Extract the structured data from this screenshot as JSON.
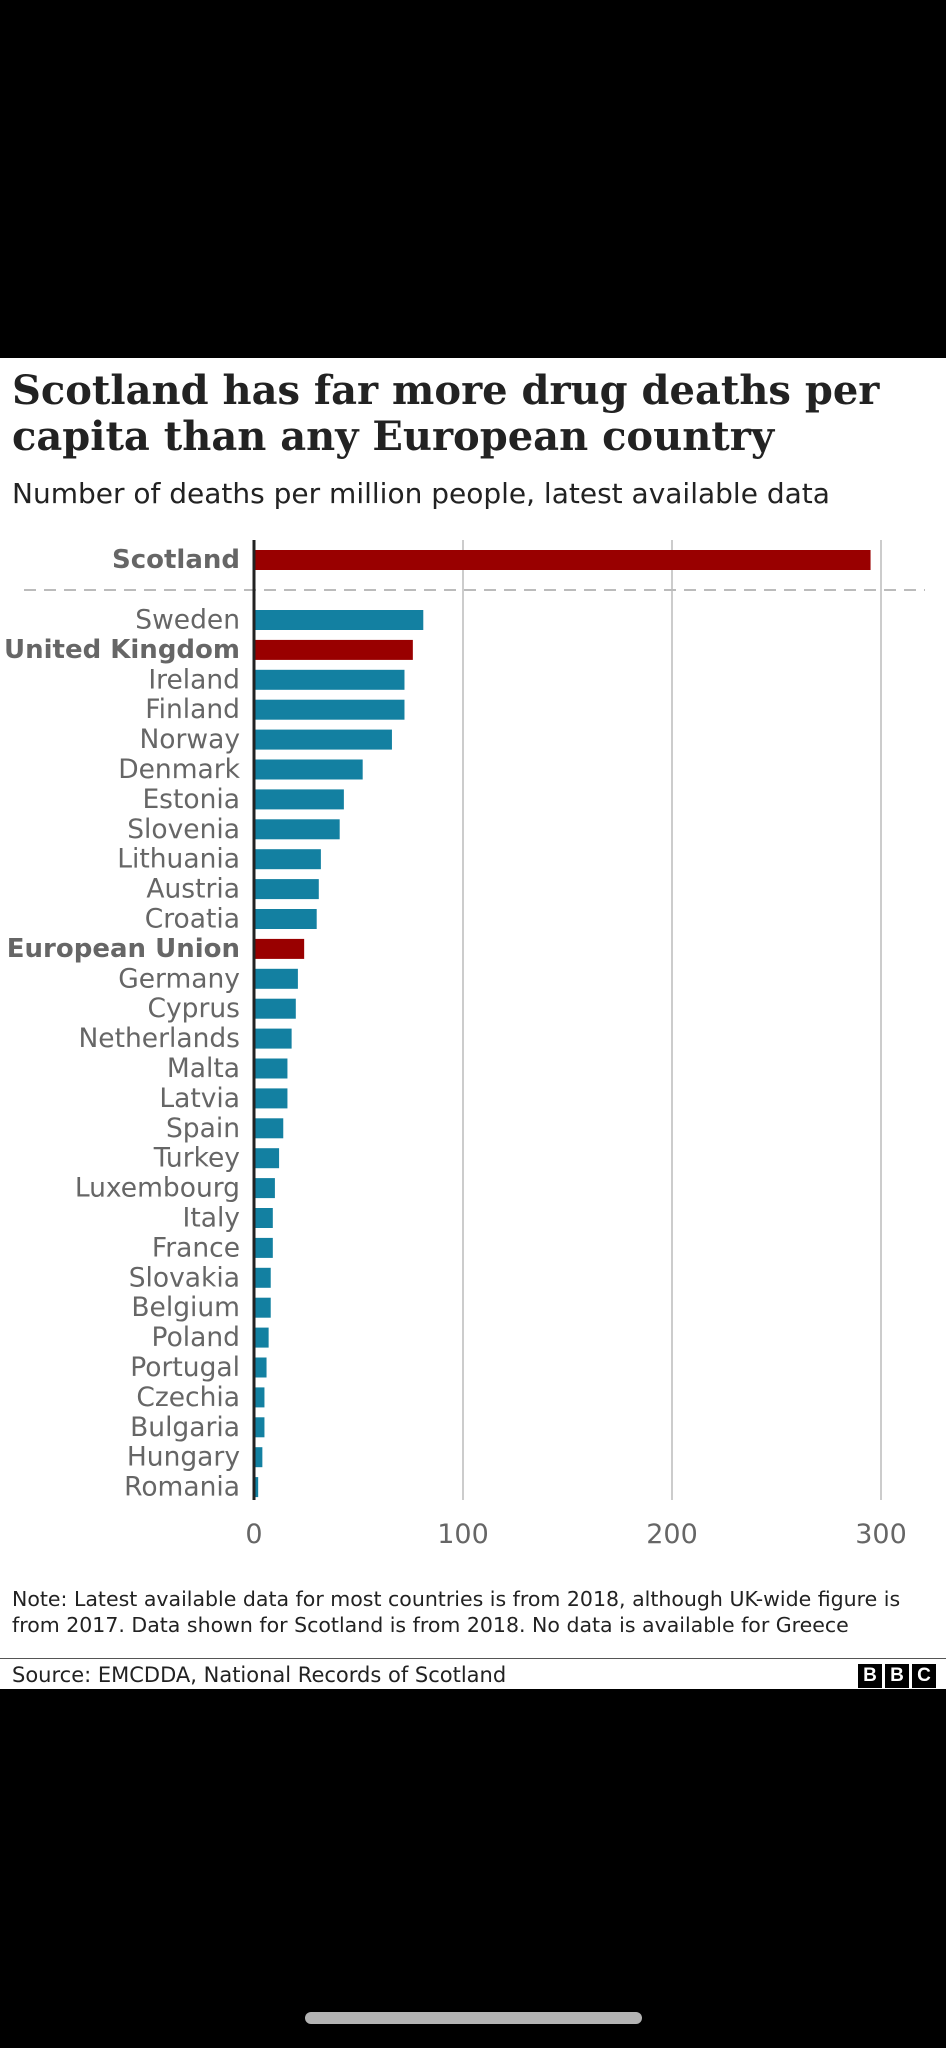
{
  "title": "Scotland has far more drug deaths per capita than any European country",
  "subtitle": "Number of deaths per million people, latest available data",
  "note": "Note: Latest available data for most countries is from 2018, although UK-wide figure is from 2017. Data shown for Scotland is from 2018. No data is available for Greece",
  "source": "Source: EMCDDA, National Records of Scotland",
  "logo": {
    "letters": [
      "B",
      "B",
      "C"
    ],
    "icon": "bbc-logo"
  },
  "colors": {
    "highlight": "#990000",
    "default": "#1380A1",
    "grid": "#cccccc",
    "axis": "#222222",
    "label": "#666666"
  },
  "chart_data": {
    "type": "bar",
    "orientation": "horizontal",
    "categories": [
      "Scotland",
      "Sweden",
      "United Kingdom",
      "Ireland",
      "Finland",
      "Norway",
      "Denmark",
      "Estonia",
      "Slovenia",
      "Lithuania",
      "Austria",
      "Croatia",
      "European Union",
      "Germany",
      "Cyprus",
      "Netherlands",
      "Malta",
      "Latvia",
      "Spain",
      "Turkey",
      "Luxembourg",
      "Italy",
      "France",
      "Slovakia",
      "Belgium",
      "Poland",
      "Portugal",
      "Czechia",
      "Bulgaria",
      "Hungary",
      "Romania"
    ],
    "values": [
      295,
      81,
      76,
      72,
      72,
      66,
      52,
      43,
      41,
      32,
      31,
      30,
      24,
      21,
      20,
      18,
      16,
      16,
      14,
      12,
      10,
      9,
      9,
      8,
      8,
      7,
      6,
      5,
      5,
      4,
      2
    ],
    "highlighted": [
      "Scotland",
      "United Kingdom",
      "European Union"
    ],
    "separator_after": "Scotland",
    "xlim": [
      0,
      300
    ],
    "xticks": [
      0,
      100,
      200,
      300
    ],
    "grid": true
  }
}
